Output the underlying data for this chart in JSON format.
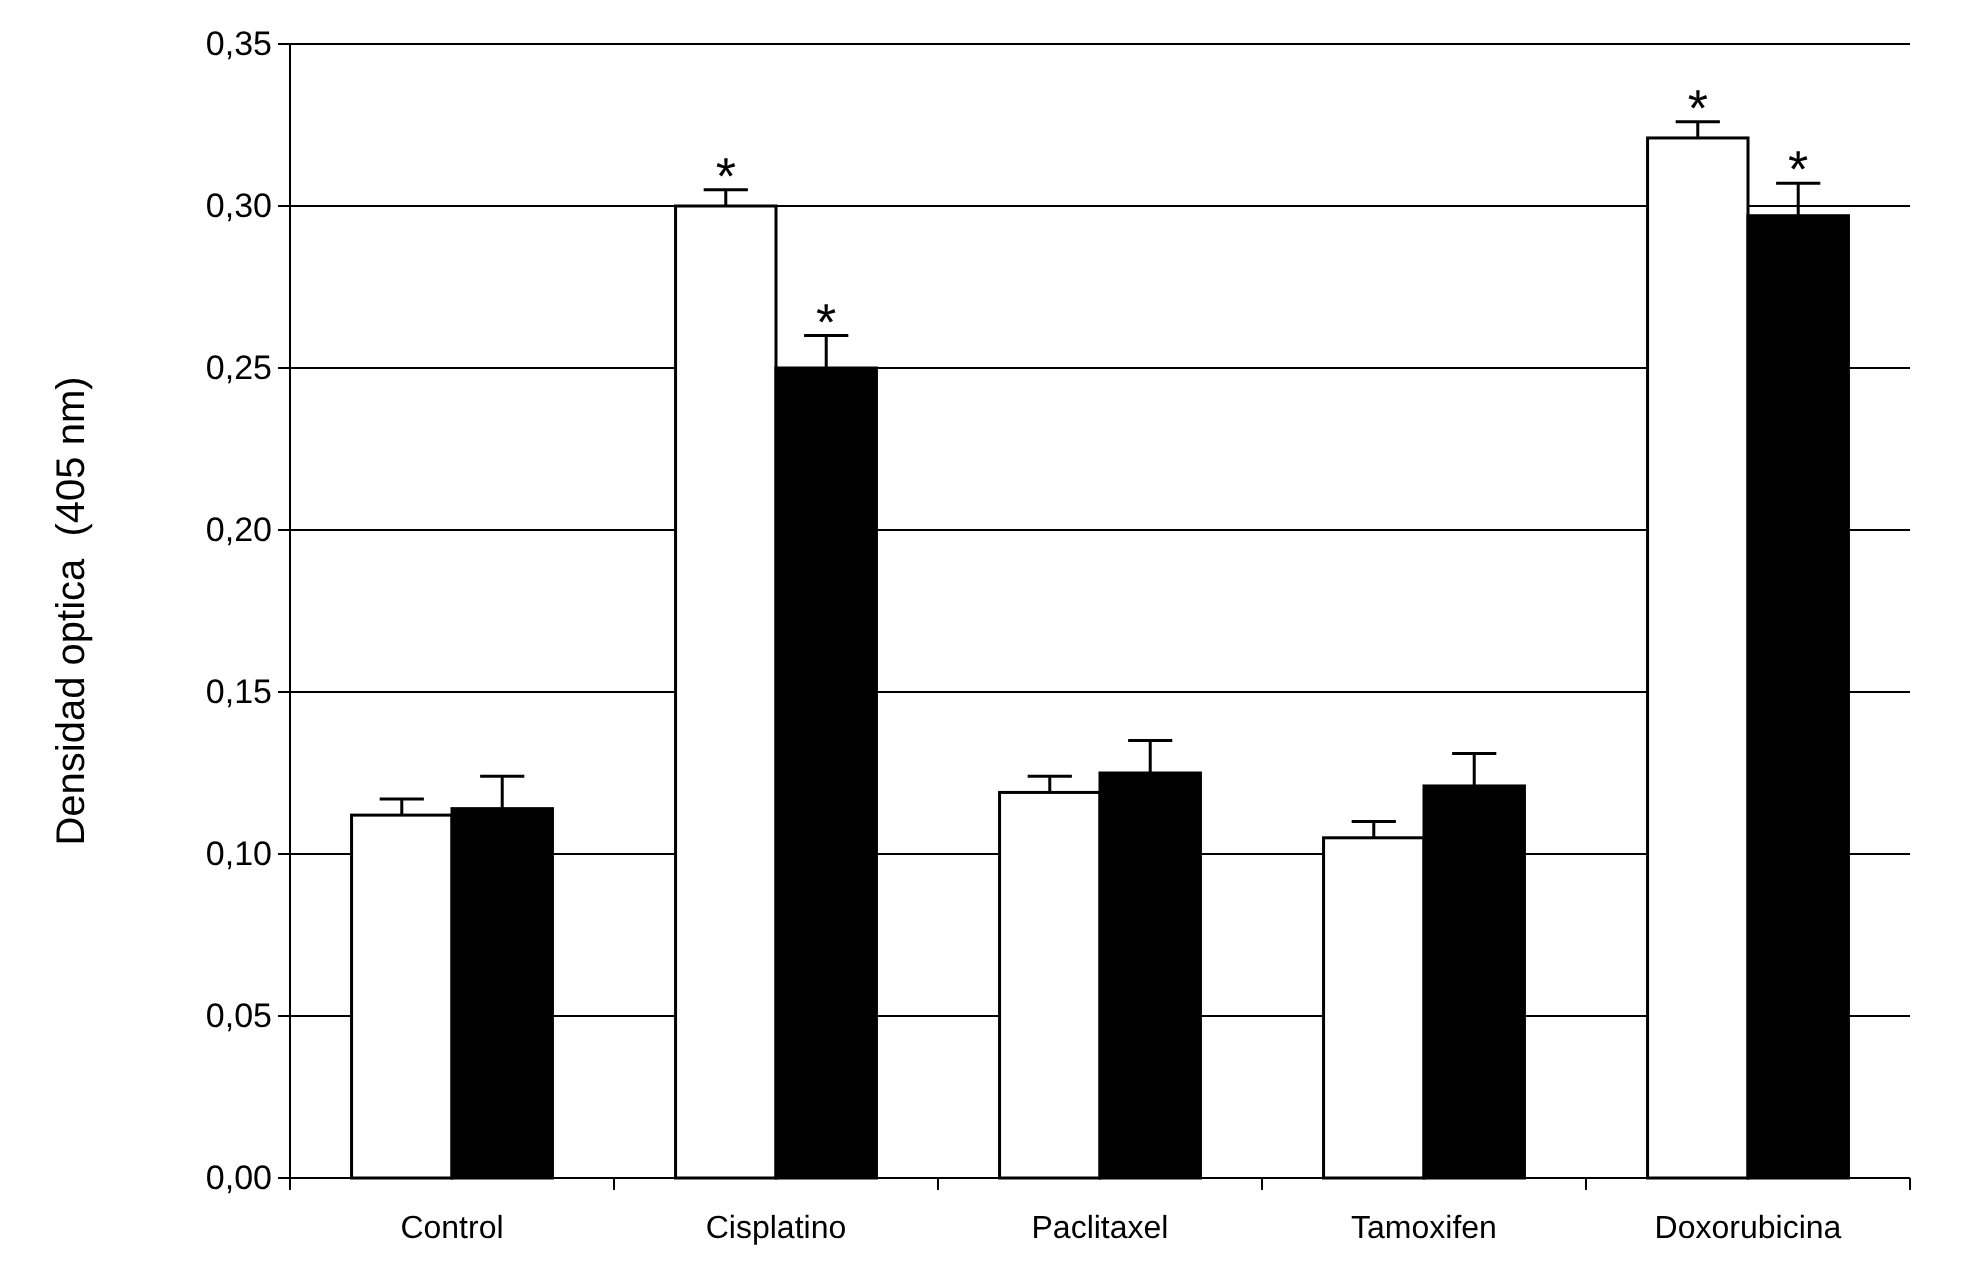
{
  "chart_data": {
    "type": "bar",
    "ylabel": "Densidad optica  (405 nm)",
    "categories": [
      "Control",
      "Cisplatino",
      "Paclitaxel",
      "Tamoxifen",
      "Doxorubicina"
    ],
    "series": [
      {
        "color": "#ffffff",
        "values": [
          0.112,
          0.3,
          0.119,
          0.105,
          0.321
        ],
        "errors": [
          0.005,
          0.005,
          0.005,
          0.005,
          0.005
        ]
      },
      {
        "color": "#000000",
        "values": [
          0.114,
          0.25,
          0.125,
          0.121,
          0.297
        ],
        "errors": [
          0.01,
          0.01,
          0.01,
          0.01,
          0.01
        ]
      }
    ],
    "ylim": [
      0,
      0.35
    ],
    "yticks": [
      {
        "value": 0,
        "label": "0,00"
      },
      {
        "value": 0.05,
        "label": "0,05"
      },
      {
        "value": 0.1,
        "label": "0,10"
      },
      {
        "value": 0.15,
        "label": "0,15"
      },
      {
        "value": 0.2,
        "label": "0,20"
      },
      {
        "value": 0.25,
        "label": "0,25"
      },
      {
        "value": 0.3,
        "label": "0,30"
      },
      {
        "value": 0.35,
        "label": "0,35"
      }
    ],
    "grid": "y",
    "annotations": [
      {
        "text": "*",
        "x": "Cisplatino",
        "y": 0.3
      },
      {
        "text": "*",
        "x": "Cisplatino",
        "y": 0.25
      },
      {
        "text": "*",
        "x": "Doxorubicina",
        "y": 0.321
      },
      {
        "text": "*",
        "x": "Doxorubicina",
        "y": 0.297
      }
    ]
  }
}
